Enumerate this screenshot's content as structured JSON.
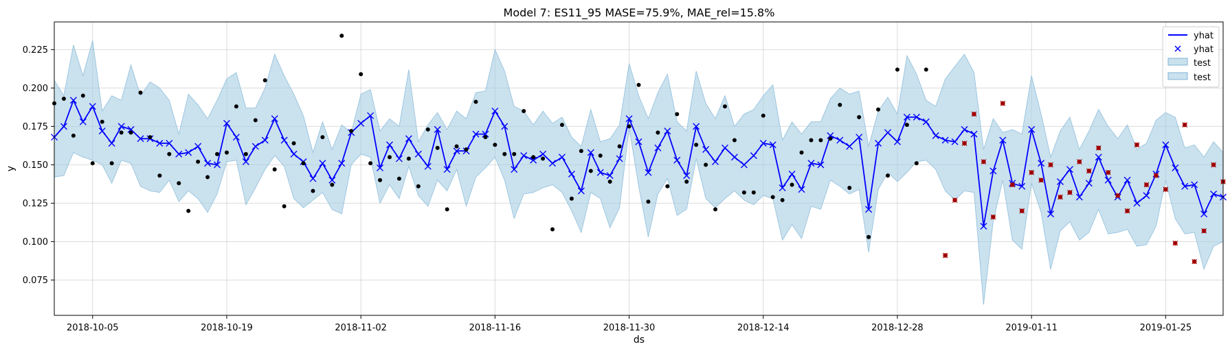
{
  "chart_data": {
    "type": "line",
    "title": "Model 7: ES11_95 MASE=75.9%, MAE_rel=15.8%",
    "xlabel": "ds",
    "ylabel": "y",
    "x_start": "2018-10-01",
    "x_end": "2019-01-31",
    "xlim": [
      "2018-10-01",
      "2019-01-31"
    ],
    "ylim": [
      0.052,
      0.243
    ],
    "x_ticks": [
      "2018-10-05",
      "2018-10-19",
      "2018-11-02",
      "2018-11-16",
      "2018-11-30",
      "2018-12-14",
      "2018-12-28",
      "2019-01-11",
      "2019-01-25"
    ],
    "y_ticks": [
      "0.075",
      "0.100",
      "0.125",
      "0.150",
      "0.175",
      "0.200",
      "0.225"
    ],
    "grid": true,
    "legend_position": "top-right",
    "legend": [
      {
        "label": "yhat",
        "kind": "line",
        "color": "#0000ff"
      },
      {
        "label": "yhat",
        "kind": "x-marker",
        "color": "#0000ff"
      },
      {
        "label": "test",
        "kind": "band",
        "color": "#a6cde3"
      },
      {
        "label": "test",
        "kind": "band",
        "color": "#a6cde3"
      }
    ],
    "colors": {
      "yhat": "#0000ff",
      "band": "#a6cde3",
      "actual": "#000000",
      "test_actual": "#c00000"
    },
    "test_start": "2019-01-01",
    "yhat": [
      0.168,
      0.175,
      0.192,
      0.178,
      0.188,
      0.172,
      0.164,
      0.175,
      0.173,
      0.167,
      0.167,
      0.164,
      0.164,
      0.157,
      0.158,
      0.162,
      0.151,
      0.15,
      0.177,
      0.168,
      0.152,
      0.162,
      0.166,
      0.18,
      0.166,
      0.157,
      0.152,
      0.141,
      0.151,
      0.14,
      0.151,
      0.171,
      0.177,
      0.182,
      0.148,
      0.163,
      0.154,
      0.167,
      0.157,
      0.149,
      0.173,
      0.147,
      0.159,
      0.159,
      0.17,
      0.17,
      0.185,
      0.175,
      0.147,
      0.156,
      0.153,
      0.157,
      0.151,
      0.155,
      0.144,
      0.133,
      0.158,
      0.145,
      0.143,
      0.154,
      0.18,
      0.165,
      0.145,
      0.161,
      0.172,
      0.153,
      0.143,
      0.175,
      0.16,
      0.152,
      0.161,
      0.155,
      0.15,
      0.156,
      0.164,
      0.163,
      0.135,
      0.144,
      0.134,
      0.151,
      0.15,
      0.169,
      0.166,
      0.162,
      0.168,
      0.121,
      0.164,
      0.171,
      0.165,
      0.181,
      0.181,
      0.178,
      0.169,
      0.166,
      0.165,
      0.173,
      0.17,
      0.11,
      0.146,
      0.166,
      0.138,
      0.136,
      0.173,
      0.151,
      0.118,
      0.139,
      0.147,
      0.129,
      0.138,
      0.155,
      0.14,
      0.129,
      0.14,
      0.125,
      0.13,
      0.144,
      0.163,
      0.148,
      0.136,
      0.137,
      0.118,
      0.131,
      0.129
    ],
    "yhat_upper": [
      0.205,
      0.195,
      0.228,
      0.208,
      0.231,
      0.185,
      0.195,
      0.192,
      0.215,
      0.195,
      0.204,
      0.2,
      0.192,
      0.17,
      0.196,
      0.189,
      0.18,
      0.192,
      0.206,
      0.21,
      0.187,
      0.187,
      0.2,
      0.222,
      0.208,
      0.196,
      0.182,
      0.158,
      0.178,
      0.16,
      0.176,
      0.171,
      0.196,
      0.199,
      0.172,
      0.18,
      0.175,
      0.212,
      0.165,
      0.176,
      0.184,
      0.173,
      0.185,
      0.18,
      0.197,
      0.198,
      0.225,
      0.211,
      0.188,
      0.185,
      0.176,
      0.185,
      0.177,
      0.181,
      0.168,
      0.162,
      0.186,
      0.165,
      0.167,
      0.176,
      0.216,
      0.195,
      0.18,
      0.197,
      0.209,
      0.178,
      0.172,
      0.211,
      0.19,
      0.18,
      0.195,
      0.175,
      0.183,
      0.186,
      0.195,
      0.202,
      0.166,
      0.178,
      0.17,
      0.178,
      0.178,
      0.193,
      0.2,
      0.196,
      0.198,
      0.162,
      0.185,
      0.194,
      0.183,
      0.221,
      0.209,
      0.192,
      0.188,
      0.206,
      0.214,
      0.222,
      0.21,
      0.16,
      0.18,
      0.171,
      0.173,
      0.17,
      0.208,
      0.183,
      0.155,
      0.172,
      0.181,
      0.16,
      0.172,
      0.186,
      0.175,
      0.167,
      0.176,
      0.16,
      0.164,
      0.179,
      0.184,
      0.181,
      0.161,
      0.163,
      0.155,
      0.165,
      0.158
    ],
    "yhat_lower": [
      0.142,
      0.143,
      0.158,
      0.155,
      0.153,
      0.15,
      0.138,
      0.153,
      0.151,
      0.136,
      0.133,
      0.132,
      0.14,
      0.126,
      0.133,
      0.128,
      0.119,
      0.131,
      0.152,
      0.153,
      0.124,
      0.135,
      0.147,
      0.156,
      0.149,
      0.128,
      0.122,
      0.127,
      0.132,
      0.121,
      0.118,
      0.15,
      0.157,
      0.155,
      0.125,
      0.137,
      0.128,
      0.149,
      0.13,
      0.123,
      0.14,
      0.133,
      0.147,
      0.123,
      0.142,
      0.148,
      0.155,
      0.14,
      0.115,
      0.131,
      0.132,
      0.135,
      0.137,
      0.132,
      0.12,
      0.106,
      0.132,
      0.128,
      0.109,
      0.122,
      0.174,
      0.136,
      0.103,
      0.131,
      0.141,
      0.117,
      0.121,
      0.154,
      0.128,
      0.122,
      0.128,
      0.133,
      0.127,
      0.124,
      0.13,
      0.128,
      0.101,
      0.111,
      0.102,
      0.123,
      0.121,
      0.14,
      0.136,
      0.131,
      0.134,
      0.093,
      0.134,
      0.145,
      0.139,
      0.145,
      0.152,
      0.153,
      0.147,
      0.133,
      0.127,
      0.133,
      0.132,
      0.059,
      0.113,
      0.14,
      0.101,
      0.095,
      0.138,
      0.119,
      0.082,
      0.107,
      0.113,
      0.101,
      0.106,
      0.121,
      0.105,
      0.106,
      0.108,
      0.097,
      0.098,
      0.11,
      0.14,
      0.115,
      0.105,
      0.106,
      0.082,
      0.097,
      0.1
    ],
    "actual": [
      [
        "2018-10-01",
        0.19
      ],
      [
        "2018-10-02",
        0.193
      ],
      [
        "2018-10-03",
        0.169
      ],
      [
        "2018-10-04",
        0.195
      ],
      [
        "2018-10-05",
        0.151
      ],
      [
        "2018-10-06",
        0.178
      ],
      [
        "2018-10-07",
        0.151
      ],
      [
        "2018-10-08",
        0.171
      ],
      [
        "2018-10-09",
        0.171
      ],
      [
        "2018-10-10",
        0.197
      ],
      [
        "2018-10-11",
        0.168
      ],
      [
        "2018-10-12",
        0.143
      ],
      [
        "2018-10-13",
        0.157
      ],
      [
        "2018-10-14",
        0.138
      ],
      [
        "2018-10-15",
        0.12
      ],
      [
        "2018-10-16",
        0.152
      ],
      [
        "2018-10-17",
        0.142
      ],
      [
        "2018-10-18",
        0.157
      ],
      [
        "2018-10-19",
        0.158
      ],
      [
        "2018-10-20",
        0.188
      ],
      [
        "2018-10-21",
        0.157
      ],
      [
        "2018-10-22",
        0.179
      ],
      [
        "2018-10-23",
        0.205
      ],
      [
        "2018-10-24",
        0.147
      ],
      [
        "2018-10-25",
        0.123
      ],
      [
        "2018-10-26",
        0.164
      ],
      [
        "2018-10-27",
        0.151
      ],
      [
        "2018-10-28",
        0.133
      ],
      [
        "2018-10-29",
        0.168
      ],
      [
        "2018-10-30",
        0.137
      ],
      [
        "2018-10-31",
        0.234
      ],
      [
        "2018-11-01",
        0.172
      ],
      [
        "2018-11-02",
        0.209
      ],
      [
        "2018-11-03",
        0.151
      ],
      [
        "2018-11-04",
        0.14
      ],
      [
        "2018-11-05",
        0.155
      ],
      [
        "2018-11-06",
        0.141
      ],
      [
        "2018-11-07",
        0.154
      ],
      [
        "2018-11-08",
        0.136
      ],
      [
        "2018-11-09",
        0.173
      ],
      [
        "2018-11-10",
        0.161
      ],
      [
        "2018-11-11",
        0.121
      ],
      [
        "2018-11-12",
        0.162
      ],
      [
        "2018-11-13",
        0.16
      ],
      [
        "2018-11-14",
        0.191
      ],
      [
        "2018-11-15",
        0.168
      ],
      [
        "2018-11-16",
        0.163
      ],
      [
        "2018-11-17",
        0.157
      ],
      [
        "2018-11-18",
        0.157
      ],
      [
        "2018-11-19",
        0.185
      ],
      [
        "2018-11-20",
        0.155
      ],
      [
        "2018-11-21",
        0.154
      ],
      [
        "2018-11-22",
        0.108
      ],
      [
        "2018-11-23",
        0.176
      ],
      [
        "2018-11-24",
        0.128
      ],
      [
        "2018-11-25",
        0.159
      ],
      [
        "2018-11-26",
        0.146
      ],
      [
        "2018-11-27",
        0.156
      ],
      [
        "2018-11-28",
        0.139
      ],
      [
        "2018-11-29",
        0.162
      ],
      [
        "2018-11-30",
        0.175
      ],
      [
        "2018-12-01",
        0.202
      ],
      [
        "2018-12-02",
        0.126
      ],
      [
        "2018-12-03",
        0.171
      ],
      [
        "2018-12-04",
        0.136
      ],
      [
        "2018-12-05",
        0.183
      ],
      [
        "2018-12-06",
        0.139
      ],
      [
        "2018-12-07",
        0.163
      ],
      [
        "2018-12-08",
        0.15
      ],
      [
        "2018-12-09",
        0.121
      ],
      [
        "2018-12-10",
        0.188
      ],
      [
        "2018-12-11",
        0.166
      ],
      [
        "2018-12-12",
        0.132
      ],
      [
        "2018-12-13",
        0.132
      ],
      [
        "2018-12-14",
        0.182
      ],
      [
        "2018-12-15",
        0.129
      ],
      [
        "2018-12-16",
        0.127
      ],
      [
        "2018-12-17",
        0.137
      ],
      [
        "2018-12-18",
        0.158
      ],
      [
        "2018-12-19",
        0.166
      ],
      [
        "2018-12-20",
        0.166
      ],
      [
        "2018-12-21",
        0.167
      ],
      [
        "2018-12-22",
        0.189
      ],
      [
        "2018-12-23",
        0.135
      ],
      [
        "2018-12-24",
        0.181
      ],
      [
        "2018-12-25",
        0.103
      ],
      [
        "2018-12-26",
        0.186
      ],
      [
        "2018-12-27",
        0.143
      ],
      [
        "2018-12-28",
        0.212
      ],
      [
        "2018-12-29",
        0.176
      ],
      [
        "2018-12-30",
        0.151
      ],
      [
        "2018-12-31",
        0.212
      ]
    ],
    "test_actual": [
      [
        "2019-01-02",
        0.091
      ],
      [
        "2019-01-03",
        0.127
      ],
      [
        "2019-01-04",
        0.164
      ],
      [
        "2019-01-05",
        0.183
      ],
      [
        "2019-01-06",
        0.152
      ],
      [
        "2019-01-07",
        0.116
      ],
      [
        "2019-01-08",
        0.19
      ],
      [
        "2019-01-09",
        0.137
      ],
      [
        "2019-01-10",
        0.12
      ],
      [
        "2019-01-11",
        0.145
      ],
      [
        "2019-01-12",
        0.14
      ],
      [
        "2019-01-13",
        0.15
      ],
      [
        "2019-01-14",
        0.129
      ],
      [
        "2019-01-15",
        0.132
      ],
      [
        "2019-01-16",
        0.152
      ],
      [
        "2019-01-17",
        0.146
      ],
      [
        "2019-01-18",
        0.161
      ],
      [
        "2019-01-19",
        0.145
      ],
      [
        "2019-01-20",
        0.13
      ],
      [
        "2019-01-21",
        0.12
      ],
      [
        "2019-01-22",
        0.163
      ],
      [
        "2019-01-23",
        0.137
      ],
      [
        "2019-01-24",
        0.143
      ],
      [
        "2019-01-25",
        0.134
      ],
      [
        "2019-01-26",
        0.099
      ],
      [
        "2019-01-27",
        0.176
      ],
      [
        "2019-01-28",
        0.087
      ],
      [
        "2019-01-29",
        0.107
      ],
      [
        "2019-01-30",
        0.15
      ],
      [
        "2019-01-31",
        0.139
      ]
    ]
  }
}
